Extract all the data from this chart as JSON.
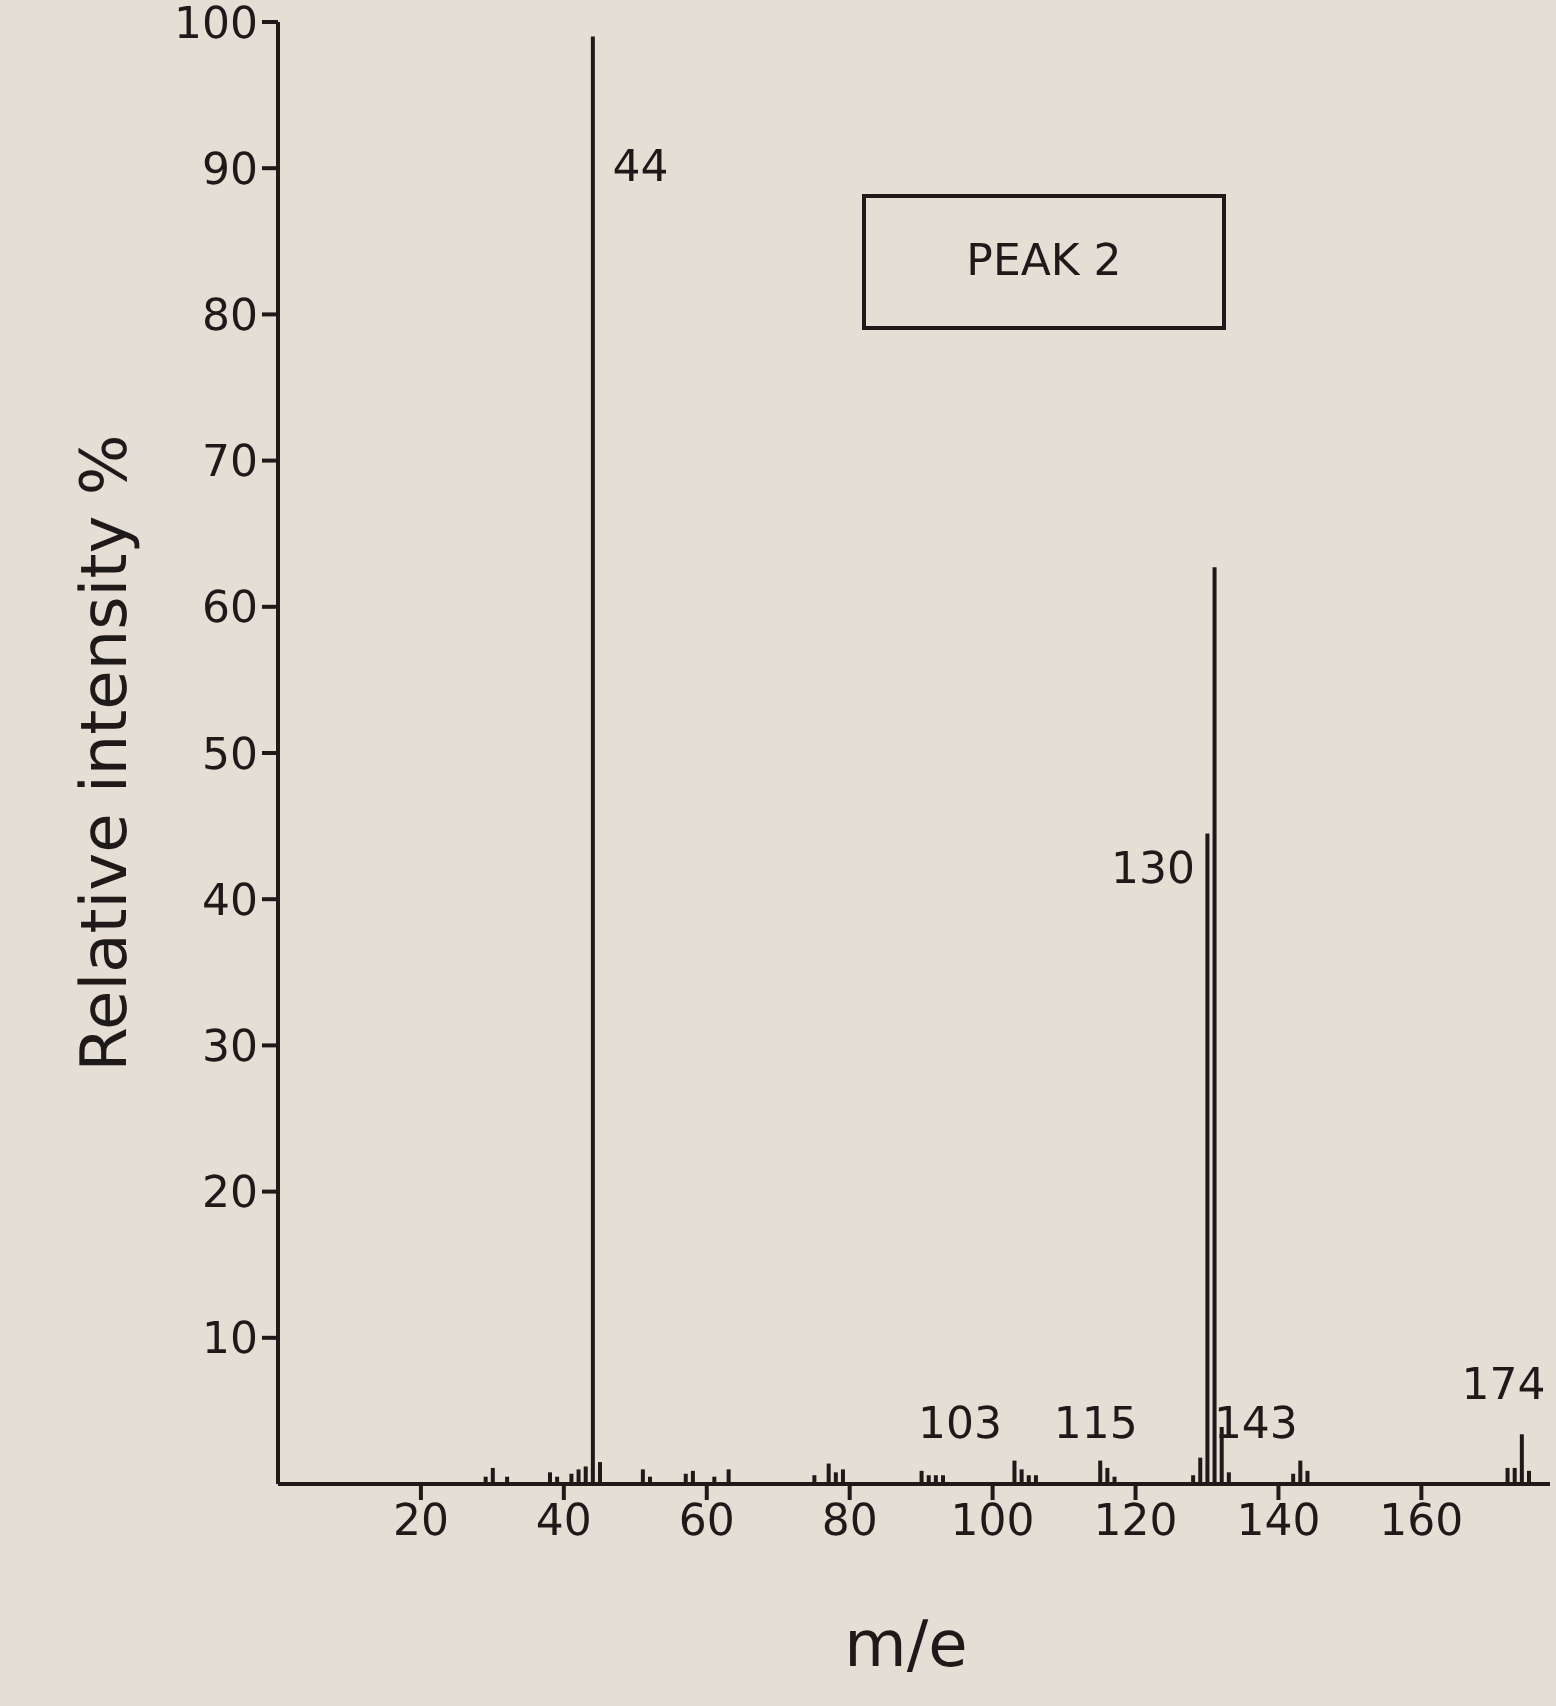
{
  "chart_data": {
    "type": "bar",
    "xlabel": "m/e",
    "ylabel": "Relative intensity %",
    "color": "#1e1a1a",
    "x": [
      29,
      30,
      32,
      38,
      39,
      41,
      42,
      43,
      44,
      45,
      51,
      52,
      57,
      58,
      61,
      63,
      75,
      77,
      78,
      79,
      90,
      91,
      92,
      93,
      103,
      104,
      105,
      106,
      115,
      116,
      117,
      128,
      129,
      130,
      131,
      132,
      133,
      142,
      143,
      144,
      172,
      173,
      174,
      175
    ],
    "values": [
      0.5,
      1.1,
      0.5,
      0.8,
      0.5,
      0.7,
      1.0,
      1.2,
      99,
      1.5,
      1.0,
      0.5,
      0.7,
      0.9,
      0.5,
      1.0,
      0.6,
      1.4,
      0.8,
      1.0,
      0.9,
      0.6,
      0.6,
      0.6,
      1.6,
      1.0,
      0.6,
      0.6,
      1.6,
      1.1,
      0.5,
      0.6,
      1.8,
      44.5,
      62.7,
      3.9,
      0.8,
      0.7,
      1.6,
      0.9,
      1.1,
      1.1,
      3.4,
      0.9
    ],
    "xlim": [
      0,
      178
    ],
    "xticks": [
      20,
      40,
      60,
      80,
      100,
      120,
      140,
      160
    ],
    "ylim": [
      0,
      100
    ],
    "yticks": [
      10,
      20,
      30,
      40,
      50,
      60,
      70,
      80,
      90,
      100
    ],
    "annotations": [
      {
        "text": "44",
        "x": 44,
        "y": 90
      },
      {
        "text": "103",
        "x": 103,
        "y": 1.6
      },
      {
        "text": "115",
        "x": 115,
        "y": 1.6
      },
      {
        "text": "130",
        "x": 130,
        "y": 42
      },
      {
        "text": "143",
        "x": 143,
        "y": 1.6
      },
      {
        "text": "174",
        "x": 174,
        "y": 3.4
      },
      "PEAK 2"
    ]
  }
}
